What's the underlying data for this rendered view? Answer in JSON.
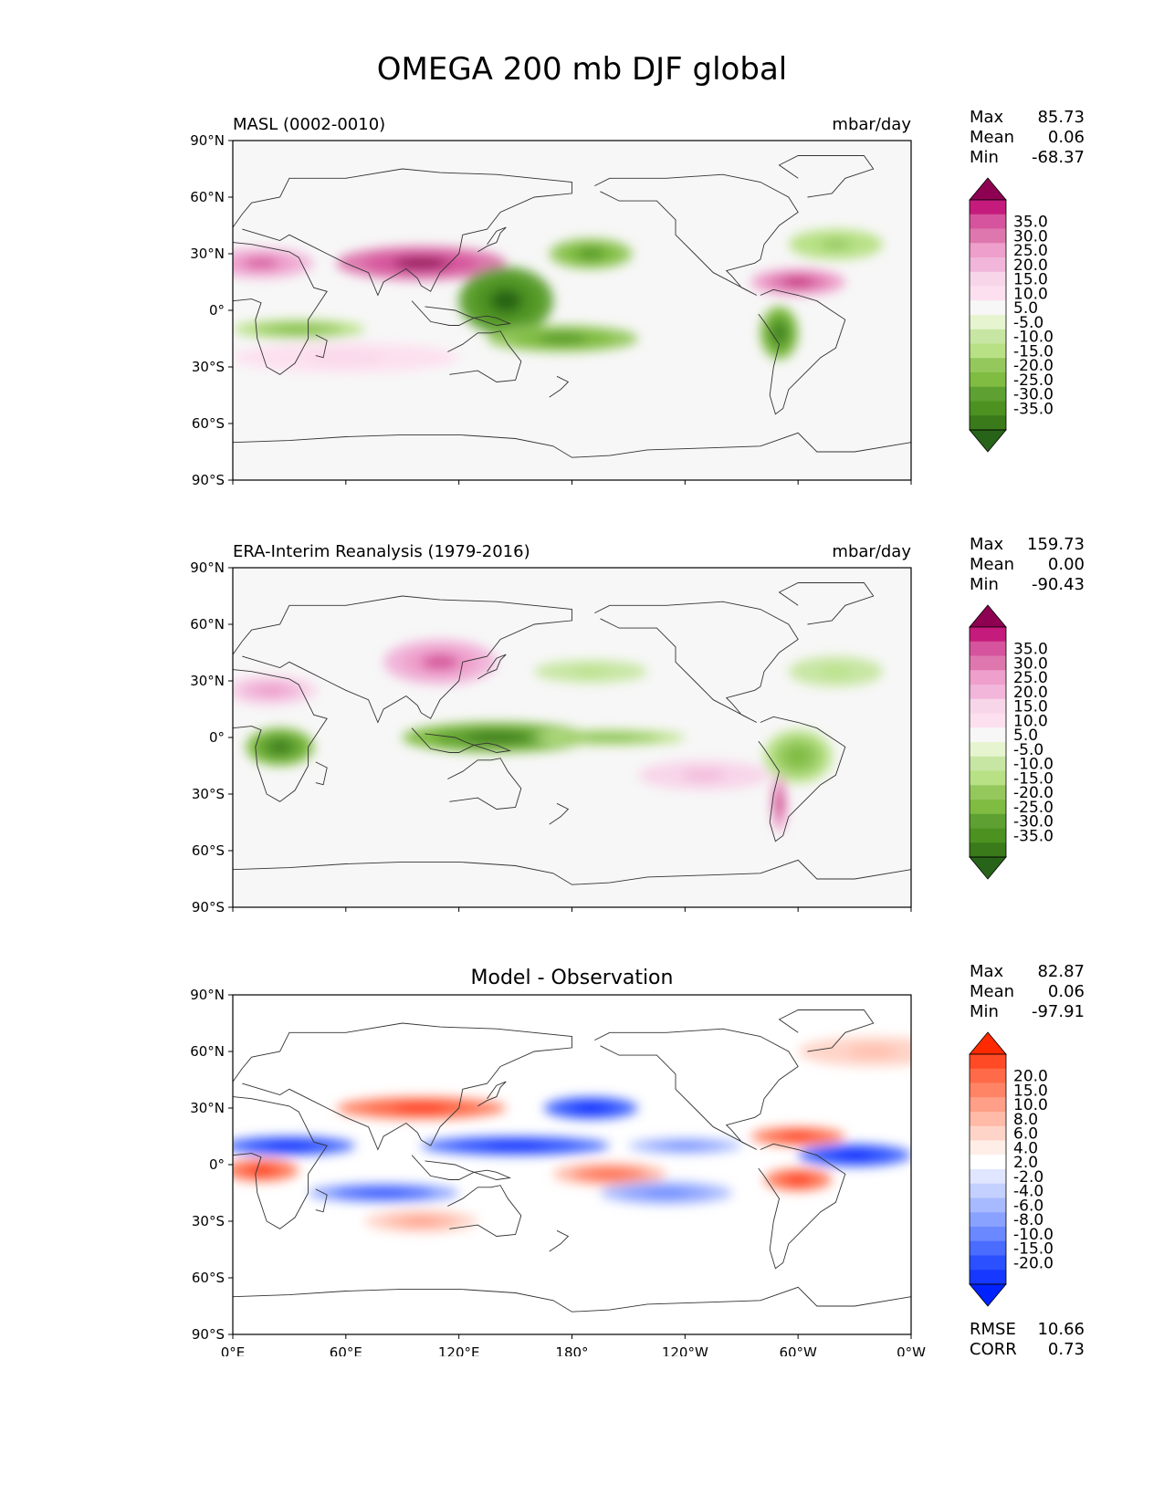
{
  "title": "OMEGA 200 mb DJF global",
  "chart_data": [
    {
      "type": "heatmap",
      "title": "",
      "left_label": "MASL (0002-0010)",
      "units": "mbar/day",
      "x_ticks": [
        "0°E",
        "60°E",
        "120°E",
        "180°",
        "120°W",
        "60°W",
        "0°W"
      ],
      "y_ticks": [
        "90°N",
        "60°N",
        "30°N",
        "0°",
        "30°S",
        "60°S",
        "90°S"
      ],
      "x_range": [
        0,
        360
      ],
      "y_range": [
        -90,
        90
      ],
      "stats": [
        {
          "label": "Max",
          "value": "85.73"
        },
        {
          "label": "Mean",
          "value": "0.06"
        },
        {
          "label": "Min",
          "value": "-68.37"
        }
      ],
      "extra_stats": [],
      "colorbar": {
        "labels": [
          "35.0",
          "30.0",
          "25.0",
          "20.0",
          "15.0",
          "10.0",
          "5.0",
          "-5.0",
          "-10.0",
          "-15.0",
          "-20.0",
          "-25.0",
          "-30.0",
          "-35.0"
        ],
        "colors": [
          "#8e0152",
          "#c51b7d",
          "#d6549d",
          "#de77ae",
          "#ee9fcb",
          "#f1b6da",
          "#f8d6e9",
          "#fde0ef",
          "#f7f7f7",
          "#e6f5d0",
          "#c7e6a3",
          "#b8e186",
          "#94c85d",
          "#7fbc41",
          "#5ea132",
          "#4d9221",
          "#3a7a1a",
          "#276419"
        ]
      },
      "features": [
        {
          "lon": 15,
          "lat": 25,
          "rx": 28,
          "ry": 8,
          "v": 25
        },
        {
          "lon": 100,
          "lat": 25,
          "rx": 45,
          "ry": 9,
          "v": 35
        },
        {
          "lon": 145,
          "lat": 5,
          "rx": 25,
          "ry": 18,
          "v": -35
        },
        {
          "lon": 175,
          "lat": -15,
          "rx": 40,
          "ry": 7,
          "v": -25
        },
        {
          "lon": 190,
          "lat": 30,
          "rx": 22,
          "ry": 8,
          "v": -25
        },
        {
          "lon": 300,
          "lat": 15,
          "rx": 25,
          "ry": 7,
          "v": 30
        },
        {
          "lon": 290,
          "lat": -12,
          "rx": 10,
          "ry": 14,
          "v": -30
        },
        {
          "lon": 35,
          "lat": -10,
          "rx": 35,
          "ry": 5,
          "v": -20
        },
        {
          "lon": 60,
          "lat": -25,
          "rx": 60,
          "ry": 8,
          "v": 10
        },
        {
          "lon": 320,
          "lat": 35,
          "rx": 25,
          "ry": 8,
          "v": -15
        }
      ]
    },
    {
      "type": "heatmap",
      "title": "",
      "left_label": "ERA-Interim Reanalysis (1979-2016)",
      "units": "mbar/day",
      "x_ticks": [
        "0°E",
        "60°E",
        "120°E",
        "180°",
        "120°W",
        "60°W",
        "0°W"
      ],
      "y_ticks": [
        "90°N",
        "60°N",
        "30°N",
        "0°",
        "30°S",
        "60°S",
        "90°S"
      ],
      "x_range": [
        0,
        360
      ],
      "y_range": [
        -90,
        90
      ],
      "stats": [
        {
          "label": "Max",
          "value": "159.73"
        },
        {
          "label": "Mean",
          "value": "0.00"
        },
        {
          "label": "Min",
          "value": "-90.43"
        }
      ],
      "extra_stats": [],
      "colorbar": {
        "labels": [
          "35.0",
          "30.0",
          "25.0",
          "20.0",
          "15.0",
          "10.0",
          "5.0",
          "-5.0",
          "-10.0",
          "-15.0",
          "-20.0",
          "-25.0",
          "-30.0",
          "-35.0"
        ],
        "colors": [
          "#8e0152",
          "#c51b7d",
          "#d6549d",
          "#de77ae",
          "#ee9fcb",
          "#f1b6da",
          "#f8d6e9",
          "#fde0ef",
          "#f7f7f7",
          "#e6f5d0",
          "#c7e6a3",
          "#b8e186",
          "#94c85d",
          "#7fbc41",
          "#5ea132",
          "#4d9221",
          "#3a7a1a",
          "#276419"
        ]
      },
      "features": [
        {
          "lon": 110,
          "lat": 40,
          "rx": 30,
          "ry": 12,
          "v": 25
        },
        {
          "lon": 20,
          "lat": 25,
          "rx": 25,
          "ry": 8,
          "v": 20
        },
        {
          "lon": 25,
          "lat": -5,
          "rx": 18,
          "ry": 10,
          "v": -30
        },
        {
          "lon": 140,
          "lat": 0,
          "rx": 50,
          "ry": 8,
          "v": -30
        },
        {
          "lon": 200,
          "lat": 0,
          "rx": 40,
          "ry": 4,
          "v": -20
        },
        {
          "lon": 300,
          "lat": -10,
          "rx": 18,
          "ry": 14,
          "v": -20
        },
        {
          "lon": 290,
          "lat": -35,
          "rx": 4,
          "ry": 15,
          "v": 30
        },
        {
          "lon": 250,
          "lat": -20,
          "rx": 35,
          "ry": 8,
          "v": 15
        },
        {
          "lon": 190,
          "lat": 35,
          "rx": 30,
          "ry": 6,
          "v": -10
        },
        {
          "lon": 320,
          "lat": 35,
          "rx": 25,
          "ry": 8,
          "v": -10
        }
      ]
    },
    {
      "type": "heatmap",
      "title": "Model - Observation",
      "left_label": "",
      "units": "",
      "x_ticks": [
        "0°E",
        "60°E",
        "120°E",
        "180°",
        "120°W",
        "60°W",
        "0°W"
      ],
      "y_ticks": [
        "90°N",
        "60°N",
        "30°N",
        "0°",
        "30°S",
        "60°S",
        "90°S"
      ],
      "x_range": [
        0,
        360
      ],
      "y_range": [
        -90,
        90
      ],
      "stats": [
        {
          "label": "Max",
          "value": "82.87"
        },
        {
          "label": "Mean",
          "value": "0.06"
        },
        {
          "label": "Min",
          "value": "-97.91"
        }
      ],
      "extra_stats": [
        {
          "label": "RMSE",
          "value": "10.66"
        },
        {
          "label": "CORR",
          "value": "0.73"
        }
      ],
      "colorbar": {
        "labels": [
          "20.0",
          "15.0",
          "10.0",
          "8.0",
          "6.0",
          "4.0",
          "2.0",
          "-2.0",
          "-4.0",
          "-6.0",
          "-8.0",
          "-10.0",
          "-15.0",
          "-20.0"
        ],
        "colors": [
          "#ff2a00",
          "#ff4a25",
          "#ff6a48",
          "#ff8466",
          "#ff9f88",
          "#ffbaa8",
          "#ffd4c8",
          "#ffeee8",
          "#ffffff",
          "#e0e6ff",
          "#c4d0ff",
          "#a8baff",
          "#8aa2ff",
          "#6a88ff",
          "#4a6cff",
          "#2a50ff",
          "#1638ff",
          "#0022ff"
        ]
      },
      "features": [
        {
          "lon": 30,
          "lat": 10,
          "rx": 35,
          "ry": 5,
          "v": -20
        },
        {
          "lon": 150,
          "lat": 10,
          "rx": 50,
          "ry": 5,
          "v": -20
        },
        {
          "lon": 15,
          "lat": -3,
          "rx": 20,
          "ry": 6,
          "v": 20
        },
        {
          "lon": 100,
          "lat": 30,
          "rx": 45,
          "ry": 6,
          "v": 20
        },
        {
          "lon": 190,
          "lat": 30,
          "rx": 25,
          "ry": 6,
          "v": -20
        },
        {
          "lon": 300,
          "lat": 15,
          "rx": 25,
          "ry": 5,
          "v": 20
        },
        {
          "lon": 300,
          "lat": -8,
          "rx": 18,
          "ry": 6,
          "v": 20
        },
        {
          "lon": 200,
          "lat": -5,
          "rx": 30,
          "ry": 6,
          "v": 15
        },
        {
          "lon": 80,
          "lat": -15,
          "rx": 40,
          "ry": 5,
          "v": -15
        },
        {
          "lon": 230,
          "lat": -15,
          "rx": 35,
          "ry": 6,
          "v": -10
        },
        {
          "lon": 330,
          "lat": 5,
          "rx": 30,
          "ry": 6,
          "v": -20
        },
        {
          "lon": 100,
          "lat": -30,
          "rx": 30,
          "ry": 6,
          "v": 10
        },
        {
          "lon": 240,
          "lat": 10,
          "rx": 30,
          "ry": 4,
          "v": -10
        },
        {
          "lon": 340,
          "lat": 60,
          "rx": 40,
          "ry": 8,
          "v": 8
        }
      ]
    }
  ]
}
